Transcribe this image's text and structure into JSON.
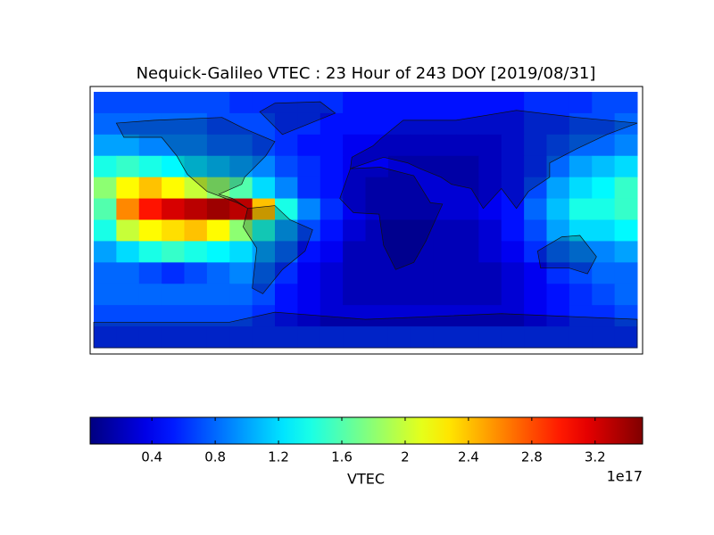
{
  "chart_data": {
    "type": "heatmap",
    "title": "Nequick-Galileo VTEC : 23 Hour of 243 DOY [2019/08/31]",
    "colorbar_label": "VTEC",
    "colorbar_offset": "1e17",
    "colormap": "jet",
    "clim": [
      0.01,
      3.5
    ],
    "cticks": [
      0.4,
      0.8,
      1.2,
      1.6,
      2.0,
      2.4,
      2.8,
      3.2
    ],
    "xlim": [
      -180,
      180
    ],
    "ylim": [
      -90,
      90
    ],
    "grid_values": [
      [
        0.7,
        0.7,
        0.7,
        0.7,
        0.7,
        0.7,
        0.6,
        0.6,
        0.6,
        0.6,
        0.6,
        0.5,
        0.5,
        0.5,
        0.5,
        0.5,
        0.5,
        0.5,
        0.5,
        0.6,
        0.6,
        0.6,
        0.7,
        0.7
      ],
      [
        0.8,
        0.8,
        0.8,
        0.8,
        0.8,
        0.7,
        0.7,
        0.7,
        0.6,
        0.6,
        0.5,
        0.5,
        0.5,
        0.5,
        0.5,
        0.5,
        0.5,
        0.5,
        0.5,
        0.6,
        0.6,
        0.7,
        0.7,
        0.8
      ],
      [
        1.0,
        1.0,
        0.9,
        0.9,
        0.9,
        0.8,
        0.8,
        0.7,
        0.6,
        0.5,
        0.5,
        0.4,
        0.4,
        0.4,
        0.4,
        0.4,
        0.4,
        0.4,
        0.5,
        0.6,
        0.7,
        0.8,
        0.8,
        0.9
      ],
      [
        1.4,
        1.5,
        1.4,
        1.3,
        1.2,
        1.1,
        1.0,
        0.9,
        0.7,
        0.6,
        0.5,
        0.4,
        0.4,
        0.3,
        0.3,
        0.3,
        0.3,
        0.4,
        0.5,
        0.6,
        0.8,
        1.0,
        1.1,
        1.2
      ],
      [
        1.8,
        2.2,
        2.4,
        2.2,
        2.0,
        1.8,
        1.6,
        1.2,
        0.9,
        0.6,
        0.5,
        0.4,
        0.3,
        0.3,
        0.3,
        0.3,
        0.3,
        0.4,
        0.5,
        0.7,
        1.0,
        1.2,
        1.3,
        1.5
      ],
      [
        1.6,
        2.6,
        3.0,
        3.2,
        3.3,
        3.4,
        3.3,
        2.4,
        1.4,
        0.9,
        0.6,
        0.4,
        0.3,
        0.3,
        0.3,
        0.3,
        0.3,
        0.4,
        0.5,
        0.8,
        1.1,
        1.4,
        1.4,
        1.5
      ],
      [
        1.4,
        2.0,
        2.2,
        2.3,
        2.4,
        2.2,
        1.8,
        1.4,
        1.0,
        0.7,
        0.5,
        0.3,
        0.2,
        0.2,
        0.2,
        0.2,
        0.2,
        0.3,
        0.5,
        0.7,
        1.0,
        1.2,
        1.2,
        1.3
      ],
      [
        1.0,
        1.2,
        1.4,
        1.5,
        1.4,
        1.3,
        1.2,
        1.0,
        0.8,
        0.5,
        0.4,
        0.2,
        0.2,
        0.2,
        0.2,
        0.2,
        0.2,
        0.3,
        0.4,
        0.6,
        0.8,
        0.9,
        0.9,
        1.0
      ],
      [
        0.8,
        0.8,
        0.7,
        0.6,
        0.7,
        0.8,
        0.9,
        0.8,
        0.6,
        0.4,
        0.3,
        0.2,
        0.2,
        0.2,
        0.2,
        0.2,
        0.2,
        0.2,
        0.3,
        0.4,
        0.6,
        0.7,
        0.8,
        0.8
      ],
      [
        0.8,
        0.8,
        0.8,
        0.8,
        0.8,
        0.8,
        0.8,
        0.7,
        0.5,
        0.4,
        0.3,
        0.2,
        0.2,
        0.2,
        0.2,
        0.2,
        0.2,
        0.2,
        0.3,
        0.4,
        0.5,
        0.6,
        0.7,
        0.8
      ],
      [
        0.7,
        0.7,
        0.7,
        0.7,
        0.7,
        0.7,
        0.7,
        0.6,
        0.5,
        0.4,
        0.3,
        0.3,
        0.3,
        0.3,
        0.3,
        0.3,
        0.3,
        0.3,
        0.3,
        0.4,
        0.5,
        0.6,
        0.6,
        0.7
      ],
      [
        0.6,
        0.6,
        0.6,
        0.6,
        0.6,
        0.6,
        0.6,
        0.6,
        0.6,
        0.6,
        0.6,
        0.6,
        0.6,
        0.6,
        0.6,
        0.6,
        0.6,
        0.6,
        0.6,
        0.6,
        0.6,
        0.6,
        0.6,
        0.6
      ]
    ]
  }
}
